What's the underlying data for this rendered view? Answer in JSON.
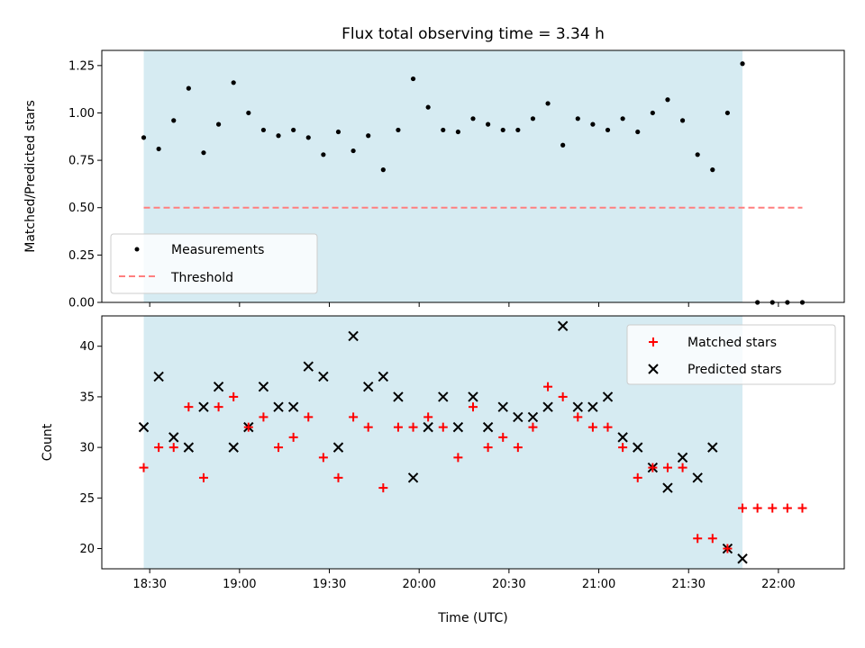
{
  "chart_data": [
    {
      "type": "scatter",
      "title": "Flux total observing time = 3.34 h",
      "xlabel": "",
      "ylabel": "Matched/Predicted stars",
      "x_unit": "Time (UTC)",
      "ylim": [
        0.0,
        1.33
      ],
      "yticks": [
        "0.00",
        "0.25",
        "0.50",
        "0.75",
        "1.00",
        "1.25"
      ],
      "ytick_values": [
        0.0,
        0.25,
        0.5,
        0.75,
        1.0,
        1.25
      ],
      "grid": false,
      "legend_location": "lower-left",
      "shaded_interval": {
        "start": "18:28",
        "end": "21:48",
        "color": "#add8e6"
      },
      "series": [
        {
          "name": "Measurements",
          "marker": "dot",
          "color": "#000000",
          "x": [
            "18:28",
            "18:33",
            "18:38",
            "18:43",
            "18:48",
            "18:53",
            "18:58",
            "19:03",
            "19:08",
            "19:13",
            "19:18",
            "19:23",
            "19:28",
            "19:33",
            "19:38",
            "19:43",
            "19:48",
            "19:53",
            "19:58",
            "20:03",
            "20:08",
            "20:13",
            "20:18",
            "20:23",
            "20:28",
            "20:33",
            "20:38",
            "20:43",
            "20:48",
            "20:53",
            "20:58",
            "21:03",
            "21:08",
            "21:13",
            "21:18",
            "21:23",
            "21:28",
            "21:33",
            "21:38",
            "21:43",
            "21:48",
            "21:53",
            "21:58",
            "22:03",
            "22:08"
          ],
          "values": [
            0.87,
            0.81,
            0.96,
            1.13,
            0.79,
            0.94,
            1.16,
            1.0,
            0.91,
            0.88,
            0.91,
            0.87,
            0.78,
            0.9,
            0.8,
            0.88,
            0.7,
            0.91,
            1.18,
            1.03,
            0.91,
            0.9,
            0.97,
            0.94,
            0.91,
            0.91,
            0.97,
            1.05,
            0.83,
            0.97,
            0.94,
            0.91,
            0.97,
            0.9,
            1.0,
            1.07,
            0.96,
            0.78,
            0.7,
            1.0,
            1.26,
            0.0,
            0.0,
            0.0,
            0.0
          ]
        },
        {
          "name": "Threshold",
          "marker": "dashed-line",
          "color": "#ff7f7f",
          "x": [
            "18:28",
            "22:08"
          ],
          "values": [
            0.5,
            0.5
          ]
        }
      ]
    },
    {
      "type": "scatter",
      "title": "",
      "xlabel": "Time (UTC)",
      "ylabel": "Count",
      "ylim": [
        18,
        43
      ],
      "yticks": [
        "20",
        "25",
        "30",
        "35",
        "40"
      ],
      "ytick_values": [
        20,
        25,
        30,
        35,
        40
      ],
      "xticks": [
        "18:30",
        "19:00",
        "19:30",
        "20:00",
        "20:30",
        "21:00",
        "21:30",
        "22:00"
      ],
      "grid": false,
      "legend_location": "top-right",
      "shaded_interval": {
        "start": "18:28",
        "end": "21:48",
        "color": "#add8e6"
      },
      "series": [
        {
          "name": "Matched stars",
          "marker": "plus",
          "color": "#ff0000",
          "x": [
            "18:28",
            "18:33",
            "18:38",
            "18:43",
            "18:48",
            "18:53",
            "18:58",
            "19:03",
            "19:08",
            "19:13",
            "19:18",
            "19:23",
            "19:28",
            "19:33",
            "19:38",
            "19:43",
            "19:48",
            "19:53",
            "19:58",
            "20:03",
            "20:08",
            "20:13",
            "20:18",
            "20:23",
            "20:28",
            "20:33",
            "20:38",
            "20:43",
            "20:48",
            "20:53",
            "20:58",
            "21:03",
            "21:08",
            "21:13",
            "21:18",
            "21:23",
            "21:28",
            "21:33",
            "21:38",
            "21:43",
            "21:48",
            "21:53",
            "21:58",
            "22:03",
            "22:08"
          ],
          "values": [
            28,
            30,
            30,
            34,
            27,
            34,
            35,
            32,
            33,
            30,
            31,
            33,
            29,
            27,
            33,
            32,
            26,
            32,
            32,
            33,
            32,
            29,
            34,
            30,
            31,
            30,
            32,
            36,
            35,
            33,
            32,
            32,
            30,
            27,
            28,
            28,
            28,
            21,
            21,
            20,
            24,
            24,
            24,
            24,
            24
          ]
        },
        {
          "name": "Predicted stars",
          "marker": "x",
          "color": "#000000",
          "x": [
            "18:28",
            "18:33",
            "18:38",
            "18:43",
            "18:48",
            "18:53",
            "18:58",
            "19:03",
            "19:08",
            "19:13",
            "19:18",
            "19:23",
            "19:28",
            "19:33",
            "19:38",
            "19:43",
            "19:48",
            "19:53",
            "19:58",
            "20:03",
            "20:08",
            "20:13",
            "20:18",
            "20:23",
            "20:28",
            "20:33",
            "20:38",
            "20:43",
            "20:48",
            "20:53",
            "20:58",
            "21:03",
            "21:08",
            "21:13",
            "21:18",
            "21:23",
            "21:28",
            "21:33",
            "21:38",
            "21:43",
            "21:48"
          ],
          "values": [
            32,
            37,
            31,
            30,
            34,
            36,
            30,
            32,
            36,
            34,
            34,
            38,
            37,
            30,
            41,
            36,
            37,
            35,
            27,
            32,
            35,
            32,
            35,
            32,
            34,
            33,
            33,
            34,
            42,
            34,
            34,
            35,
            31,
            30,
            28,
            26,
            29,
            27,
            30,
            20,
            19
          ]
        }
      ]
    }
  ]
}
